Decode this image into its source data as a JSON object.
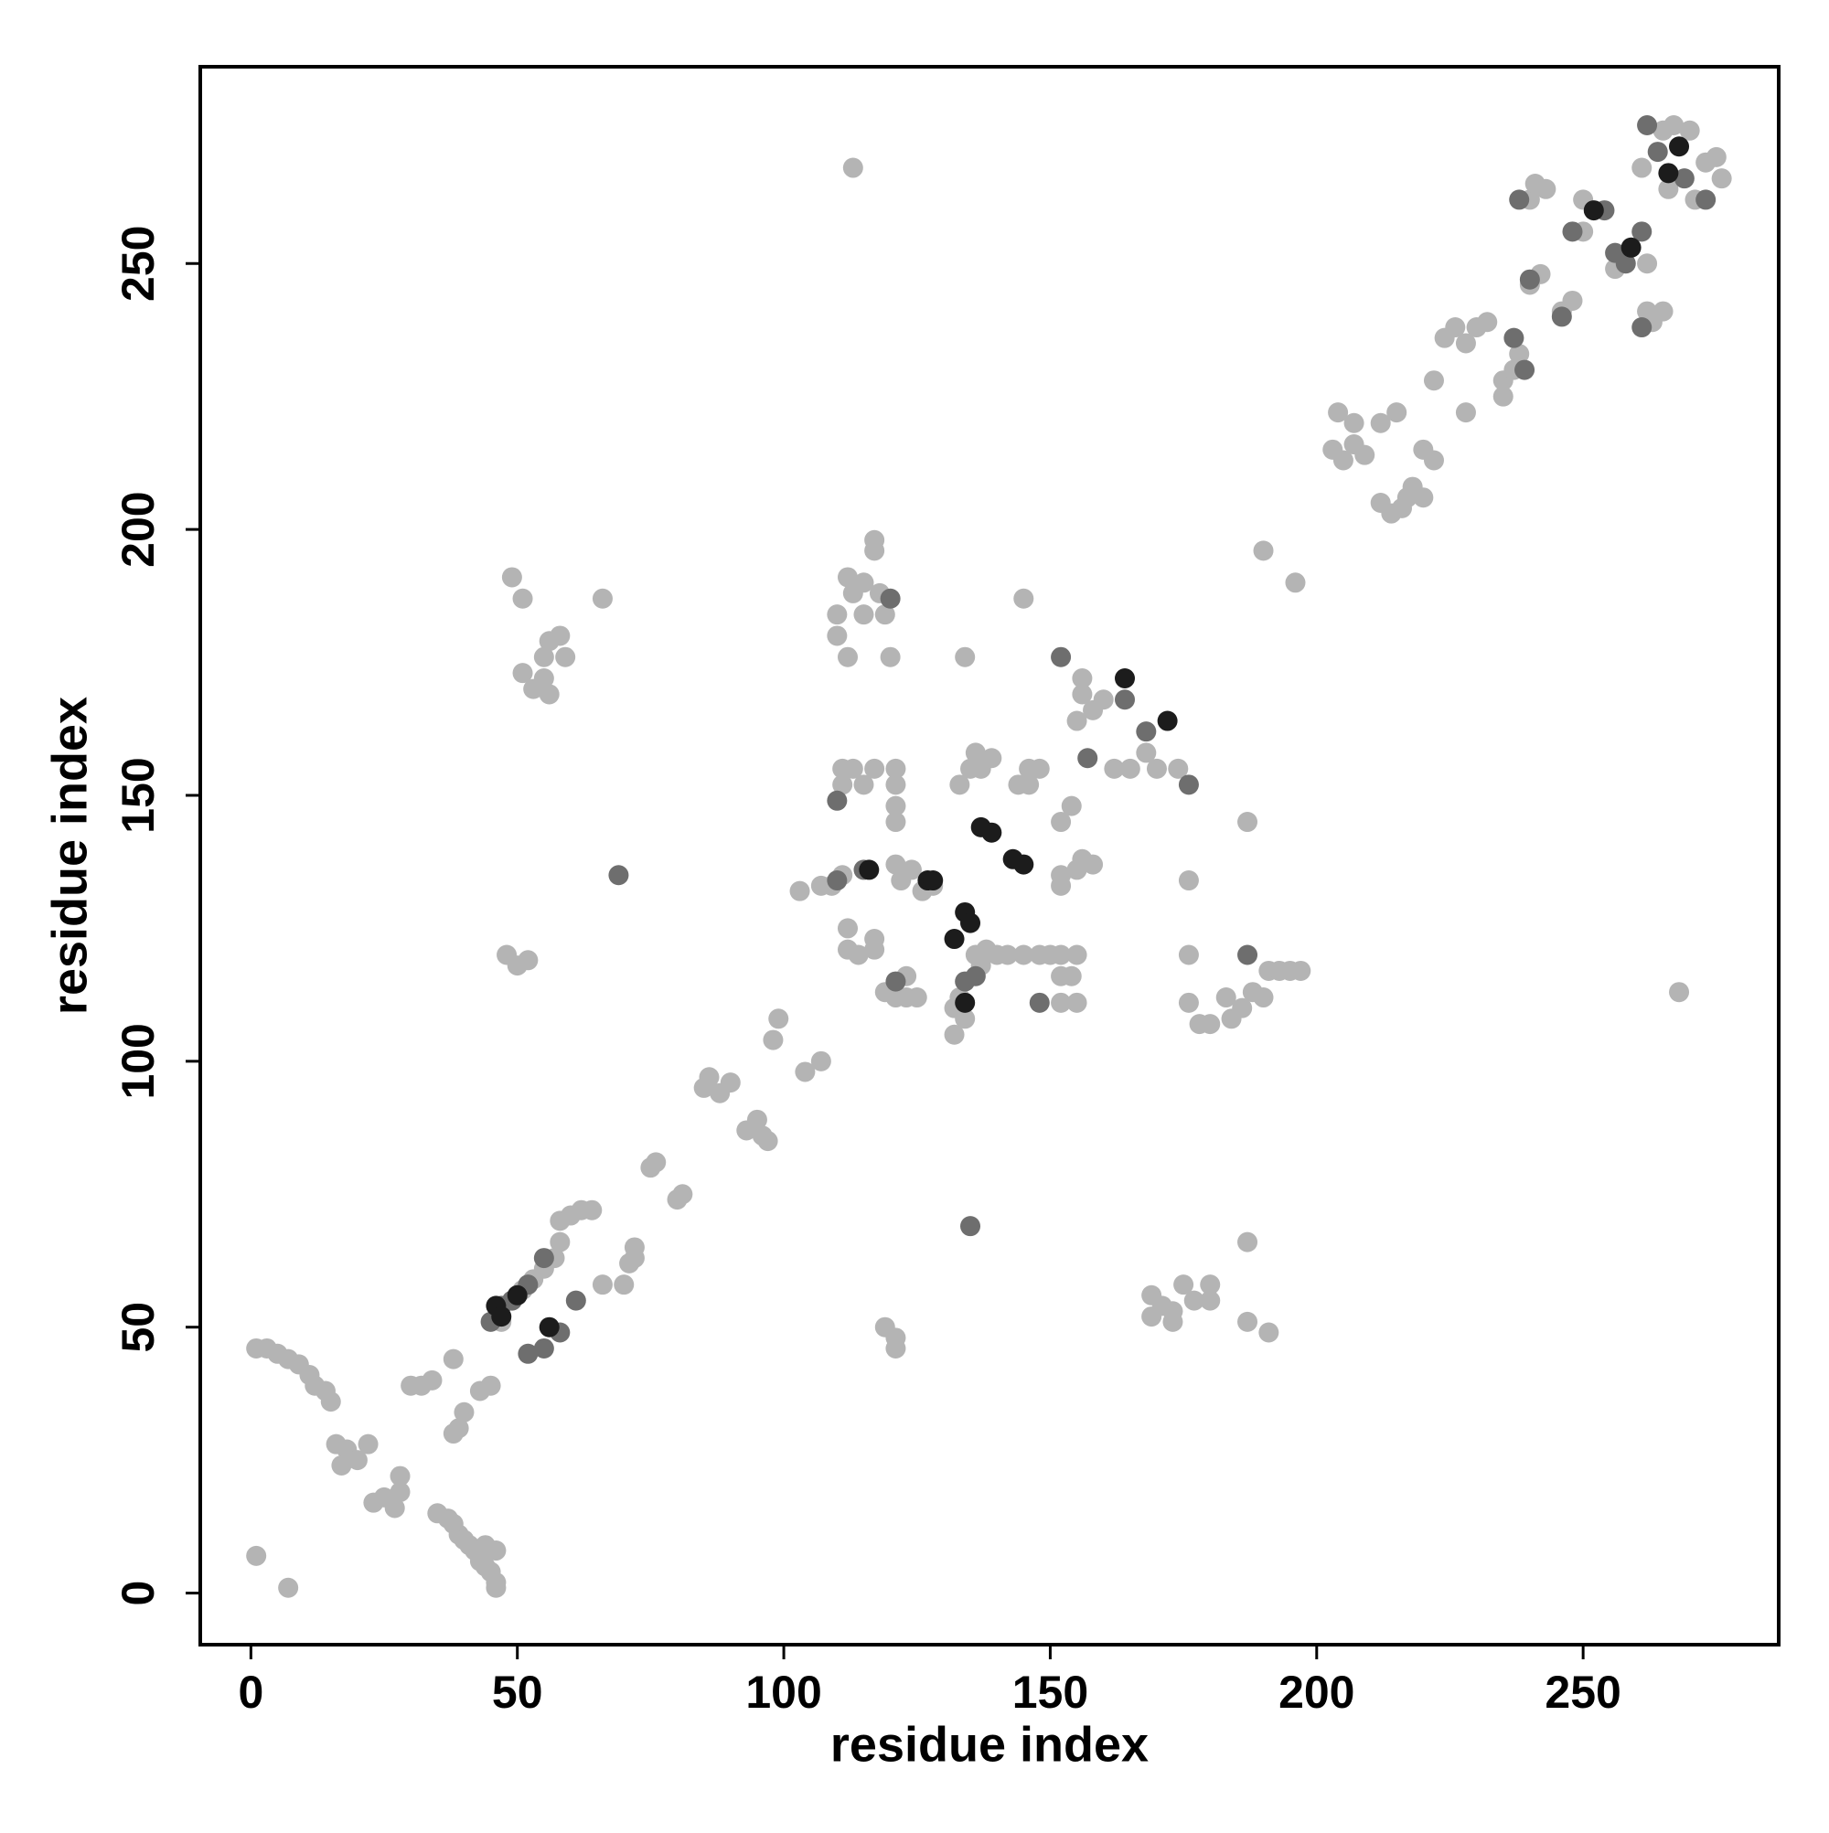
{
  "chart_data": {
    "type": "scatter",
    "x_label": "residue index",
    "y_label": "residue index",
    "xlim": [
      -9.5,
      286.7
    ],
    "ylim": [
      -9.7,
      287
    ],
    "xticks": [
      0,
      50,
      100,
      150,
      200,
      250
    ],
    "yticks": [
      0,
      50,
      100,
      150,
      200,
      250
    ],
    "grid": false,
    "series": [
      {
        "color": "#b4b4b4",
        "x": [
          1,
          7,
          1,
          3,
          5,
          7,
          9,
          11,
          12,
          14,
          15,
          16,
          18,
          17,
          20,
          22,
          23,
          25,
          27,
          28,
          28,
          30,
          32,
          34,
          35,
          37,
          38,
          39,
          40,
          41,
          42,
          43,
          44,
          45,
          46,
          46,
          44,
          46,
          38,
          39,
          40,
          38,
          43,
          45,
          47,
          49,
          51,
          53,
          55,
          57,
          58,
          58,
          60,
          62,
          64,
          66,
          70,
          71,
          72,
          72,
          75,
          76,
          80,
          81,
          85,
          86,
          88,
          90,
          93,
          95,
          96,
          97,
          98,
          99,
          104,
          107,
          48,
          50,
          52,
          49,
          51,
          51,
          53,
          55,
          56,
          55,
          56,
          58,
          59,
          66,
          113,
          268,
          119,
          121,
          121,
          187,
          187,
          191,
          169,
          171,
          173,
          175,
          177,
          180,
          180,
          169,
          173,
          103,
          107,
          109,
          111,
          110,
          110,
          112,
          113,
          112,
          115,
          115,
          117,
          117,
          118,
          119,
          120,
          111,
          111,
          113,
          115,
          117,
          121,
          121,
          121,
          121,
          112,
          112,
          114,
          117,
          117,
          119,
          121,
          123,
          123,
          125,
          121,
          122,
          124,
          126,
          128,
          133,
          134,
          135,
          136,
          137,
          139,
          132,
          132,
          133,
          134,
          136,
          137,
          138,
          140,
          142,
          145,
          148,
          150,
          152,
          152,
          152,
          154,
          155,
          155,
          144,
          146,
          146,
          148,
          145,
          152,
          152,
          152,
          154,
          155,
          156,
          158,
          155,
          156,
          156,
          158,
          160,
          162,
          165,
          168,
          170,
          174,
          176,
          176,
          176,
          178,
          180,
          183,
          184,
          186,
          187,
          188,
          190,
          191,
          193,
          195,
          197,
          190,
          196,
          203,
          205,
          207,
          209,
          204,
          207,
          212,
          214,
          216,
          217,
          212,
          215,
          218,
          220,
          220,
          222,
          222,
          224,
          226,
          228,
          230,
          232,
          228,
          235,
          235,
          237,
          238,
          240,
          242,
          246,
          248,
          250,
          250,
          256,
          262,
          262,
          263,
          265,
          240,
          241,
          243,
          261,
          265,
          267,
          270,
          271,
          273,
          275,
          276,
          266
        ],
        "y": [
          7,
          1,
          46,
          46,
          45,
          44,
          43,
          41,
          39,
          38,
          36,
          28,
          27,
          24,
          25,
          28,
          17,
          18,
          16,
          19,
          22,
          39,
          39,
          40,
          15,
          14,
          13,
          11,
          10,
          9,
          8,
          6,
          5,
          4,
          2,
          1,
          9,
          8,
          30,
          31,
          34,
          44,
          38,
          39,
          51,
          55,
          57,
          59,
          61,
          63,
          66,
          70,
          71,
          72,
          72,
          58,
          58,
          62,
          63,
          65,
          80,
          81,
          74,
          75,
          95,
          97,
          94,
          96,
          87,
          89,
          86,
          85,
          104,
          108,
          98,
          100,
          120,
          118,
          119,
          191,
          187,
          173,
          170,
          172,
          169,
          176,
          179,
          180,
          176,
          187,
          268,
          113,
          50,
          48,
          46,
          66,
          51,
          49,
          56,
          54,
          53,
          58,
          55,
          55,
          58,
          52,
          51,
          132,
          133,
          133,
          135,
          180,
          184,
          176,
          188,
          191,
          190,
          184,
          198,
          196,
          188,
          184,
          176,
          155,
          152,
          155,
          152,
          155,
          155,
          152,
          148,
          145,
          125,
          121,
          120,
          123,
          121,
          113,
          112,
          116,
          112,
          112,
          137,
          134,
          136,
          132,
          133,
          152,
          176,
          155,
          158,
          155,
          157,
          110,
          105,
          112,
          108,
          120,
          118,
          121,
          120,
          120,
          120,
          120,
          120,
          120,
          116,
          111,
          116,
          111,
          120,
          152,
          152,
          155,
          155,
          187,
          145,
          135,
          133,
          148,
          136,
          138,
          137,
          164,
          169,
          172,
          166,
          168,
          155,
          155,
          158,
          155,
          155,
          134,
          120,
          111,
          107,
          107,
          112,
          108,
          110,
          145,
          113,
          112,
          117,
          117,
          117,
          117,
          196,
          190,
          215,
          213,
          216,
          214,
          222,
          220,
          205,
          203,
          204,
          206,
          220,
          222,
          208,
          206,
          215,
          213,
          228,
          236,
          238,
          235,
          238,
          239,
          222,
          225,
          228,
          230,
          233,
          246,
          248,
          241,
          243,
          256,
          262,
          249,
          250,
          241,
          239,
          241,
          262,
          265,
          264,
          268,
          275,
          276,
          275,
          262,
          269,
          270,
          266,
          264
        ]
      },
      {
        "color": "#6e6e6e",
        "x": [
          69,
          135,
          45,
          47,
          49,
          52,
          55,
          52,
          55,
          58,
          61,
          110,
          110,
          120,
          115,
          121,
          134,
          136,
          148,
          152,
          157,
          164,
          168,
          176,
          187,
          238,
          240,
          246,
          248,
          254,
          256,
          258,
          261,
          261,
          262,
          264,
          269,
          273,
          237,
          239
        ],
        "y": [
          135,
          69,
          51,
          54,
          55,
          58,
          63,
          45,
          46,
          49,
          55,
          149,
          134,
          187,
          136,
          115,
          115,
          116,
          111,
          176,
          157,
          168,
          162,
          152,
          120,
          262,
          247,
          240,
          256,
          260,
          252,
          250,
          238,
          256,
          276,
          271,
          266,
          262,
          236,
          230
        ]
      },
      {
        "color": "#1c1c1c",
        "x": [
          46,
          47,
          50,
          56,
          116,
          127,
          128,
          134,
          135,
          132,
          134,
          137,
          139,
          145,
          143,
          164,
          172,
          252,
          259,
          268,
          266
        ],
        "y": [
          54,
          52,
          56,
          50,
          136,
          134,
          134,
          128,
          126,
          123,
          111,
          144,
          143,
          137,
          138,
          172,
          164,
          260,
          253,
          272,
          267
        ]
      }
    ]
  }
}
